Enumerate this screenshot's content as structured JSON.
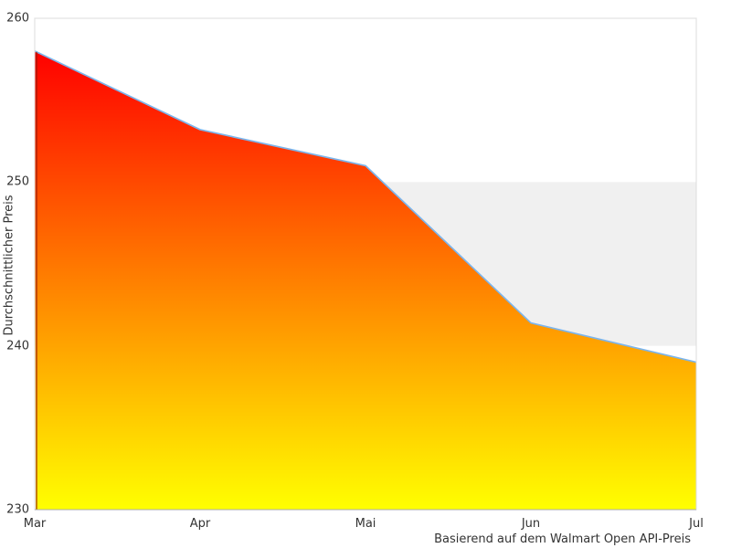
{
  "chart_data": {
    "type": "area",
    "categories": [
      "Mar",
      "Apr",
      "Mai",
      "Jun",
      "Jul"
    ],
    "values": [
      258,
      253.2,
      251,
      241.4,
      239
    ],
    "title": "",
    "xlabel": "",
    "ylabel": "Durchschnittlicher Preis",
    "caption": "Basierend auf dem Walmart Open API-Preis",
    "ylim": [
      230,
      260
    ],
    "yticks": [
      260,
      250,
      240,
      230
    ],
    "grid": "off",
    "legend": "off",
    "plot_band": {
      "from": 240,
      "to": 250,
      "color": "#f0f0f0"
    },
    "colors": {
      "area_gradient_top": "#ff0000",
      "area_gradient_bottom": "#ffff00",
      "series_line": "#7cb5ec",
      "series_left_edge": "rgba(150,25,0,0.55)",
      "plot_border": "#dddddd",
      "axis_line": "#aaaaaa",
      "text": "#333333",
      "background": "#ffffff"
    }
  }
}
